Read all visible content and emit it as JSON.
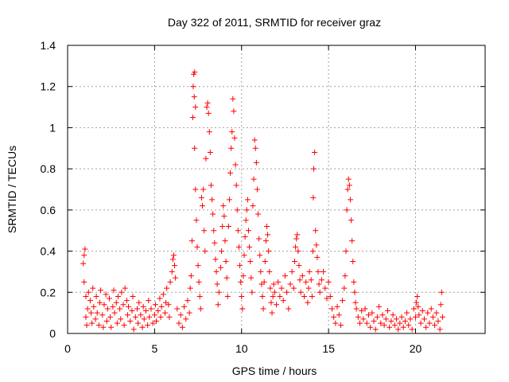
{
  "chart_data": {
    "type": "scatter",
    "title": "Day 322 of 2011, SRMTID for receiver graz",
    "xlabel": "GPS time / hours",
    "ylabel": "SRMTID / TECUs",
    "xlim": [
      0,
      24
    ],
    "ylim": [
      0,
      1.4
    ],
    "xticks": [
      0,
      5,
      10,
      15,
      20
    ],
    "xtick_labels": [
      "0",
      "5",
      "10",
      "15",
      "20"
    ],
    "yticks": [
      0,
      0.2,
      0.4,
      0.6,
      0.8,
      1.0,
      1.2,
      1.4
    ],
    "ytick_labels": [
      "0",
      "0.2",
      "0.4",
      "0.6",
      "0.8",
      "1",
      "1.2",
      "1.4"
    ],
    "grid": true,
    "marker": "plus",
    "color": "#ff0000",
    "series": [
      {
        "name": "SRMTID",
        "points": [
          [
            0.9,
            0.34
          ],
          [
            0.95,
            0.38
          ],
          [
            1.0,
            0.41
          ],
          [
            0.95,
            0.25
          ],
          [
            1.05,
            0.18
          ],
          [
            1.05,
            0.08
          ],
          [
            1.1,
            0.04
          ],
          [
            1.15,
            0.12
          ],
          [
            1.2,
            0.2
          ],
          [
            1.3,
            0.16
          ],
          [
            1.35,
            0.1
          ],
          [
            1.4,
            0.05
          ],
          [
            1.45,
            0.22
          ],
          [
            1.5,
            0.13
          ],
          [
            1.6,
            0.07
          ],
          [
            1.65,
            0.18
          ],
          [
            1.7,
            0.1
          ],
          [
            1.8,
            0.04
          ],
          [
            1.85,
            0.15
          ],
          [
            1.9,
            0.21
          ],
          [
            2.0,
            0.09
          ],
          [
            2.05,
            0.03
          ],
          [
            2.1,
            0.14
          ],
          [
            2.2,
            0.19
          ],
          [
            2.25,
            0.06
          ],
          [
            2.3,
            0.12
          ],
          [
            2.4,
            0.17
          ],
          [
            2.45,
            0.08
          ],
          [
            2.5,
            0.03
          ],
          [
            2.6,
            0.13
          ],
          [
            2.65,
            0.21
          ],
          [
            2.7,
            0.1
          ],
          [
            2.8,
            0.15
          ],
          [
            2.85,
            0.05
          ],
          [
            2.9,
            0.18
          ],
          [
            3.0,
            0.12
          ],
          [
            3.05,
            0.07
          ],
          [
            3.1,
            0.2
          ],
          [
            3.2,
            0.14
          ],
          [
            3.25,
            0.04
          ],
          [
            3.3,
            0.22
          ],
          [
            3.4,
            0.16
          ],
          [
            3.45,
            0.09
          ],
          [
            3.5,
            0.13
          ],
          [
            3.6,
            0.06
          ],
          [
            3.7,
            0.11
          ],
          [
            3.75,
            0.18
          ],
          [
            3.8,
            0.02
          ],
          [
            3.9,
            0.08
          ],
          [
            4.0,
            0.12
          ],
          [
            4.05,
            0.05
          ],
          [
            4.1,
            0.15
          ],
          [
            4.2,
            0.09
          ],
          [
            4.3,
            0.03
          ],
          [
            4.35,
            0.13
          ],
          [
            4.4,
            0.07
          ],
          [
            4.5,
            0.11
          ],
          [
            4.6,
            0.04
          ],
          [
            4.65,
            0.16
          ],
          [
            4.7,
            0.08
          ],
          [
            4.8,
            0.12
          ],
          [
            4.9,
            0.05
          ],
          [
            5.0,
            0.09
          ],
          [
            5.05,
            0.14
          ],
          [
            5.1,
            0.06
          ],
          [
            5.2,
            0.11
          ],
          [
            5.3,
            0.17
          ],
          [
            5.35,
            0.08
          ],
          [
            5.4,
            0.13
          ],
          [
            5.5,
            0.19
          ],
          [
            5.6,
            0.1
          ],
          [
            5.65,
            0.15
          ],
          [
            5.7,
            0.22
          ],
          [
            5.8,
            0.14
          ],
          [
            5.85,
            0.08
          ],
          [
            5.9,
            0.25
          ],
          [
            6.0,
            0.3
          ],
          [
            6.05,
            0.36
          ],
          [
            6.1,
            0.38
          ],
          [
            6.15,
            0.33
          ],
          [
            6.2,
            0.27
          ],
          [
            6.3,
            0.12
          ],
          [
            6.4,
            0.05
          ],
          [
            6.5,
            0.09
          ],
          [
            6.6,
            0.03
          ],
          [
            6.7,
            0.13
          ],
          [
            6.8,
            0.07
          ],
          [
            6.9,
            0.16
          ],
          [
            7.0,
            0.1
          ],
          [
            7.05,
            0.22
          ],
          [
            7.1,
            0.28
          ],
          [
            7.15,
            0.45
          ],
          [
            7.2,
            1.05
          ],
          [
            7.22,
            1.2
          ],
          [
            7.25,
            1.26
          ],
          [
            7.3,
            1.27
          ],
          [
            7.28,
            1.15
          ],
          [
            7.35,
            1.1
          ],
          [
            7.3,
            0.9
          ],
          [
            7.35,
            0.7
          ],
          [
            7.4,
            0.55
          ],
          [
            7.45,
            0.42
          ],
          [
            7.5,
            0.33
          ],
          [
            7.55,
            0.25
          ],
          [
            7.6,
            0.18
          ],
          [
            7.65,
            0.12
          ],
          [
            7.7,
            0.66
          ],
          [
            7.75,
            0.62
          ],
          [
            7.8,
            0.7
          ],
          [
            7.85,
            0.5
          ],
          [
            7.9,
            0.4
          ],
          [
            7.95,
            0.85
          ],
          [
            8.0,
            1.1
          ],
          [
            8.05,
            1.12
          ],
          [
            8.1,
            1.07
          ],
          [
            8.15,
            0.98
          ],
          [
            8.2,
            0.88
          ],
          [
            8.25,
            0.72
          ],
          [
            8.3,
            0.65
          ],
          [
            8.35,
            0.58
          ],
          [
            8.4,
            0.5
          ],
          [
            8.45,
            0.44
          ],
          [
            8.5,
            0.36
          ],
          [
            8.55,
            0.3
          ],
          [
            8.6,
            0.24
          ],
          [
            8.65,
            0.14
          ],
          [
            8.7,
            0.2
          ],
          [
            8.8,
            0.32
          ],
          [
            8.85,
            0.4
          ],
          [
            8.9,
            0.52
          ],
          [
            8.95,
            0.62
          ],
          [
            9.0,
            0.57
          ],
          [
            9.05,
            0.45
          ],
          [
            9.1,
            0.35
          ],
          [
            9.15,
            0.27
          ],
          [
            9.2,
            0.18
          ],
          [
            9.25,
            0.52
          ],
          [
            9.3,
            0.65
          ],
          [
            9.35,
            0.78
          ],
          [
            9.4,
            0.9
          ],
          [
            9.45,
            0.98
          ],
          [
            9.5,
            1.14
          ],
          [
            9.55,
            1.08
          ],
          [
            9.6,
            0.95
          ],
          [
            9.65,
            0.82
          ],
          [
            9.7,
            0.72
          ],
          [
            9.75,
            0.6
          ],
          [
            9.8,
            0.5
          ],
          [
            9.85,
            0.42
          ],
          [
            9.9,
            0.33
          ],
          [
            9.95,
            0.25
          ],
          [
            10.0,
            0.18
          ],
          [
            10.05,
            0.12
          ],
          [
            10.1,
            0.28
          ],
          [
            10.15,
            0.38
          ],
          [
            10.2,
            0.47
          ],
          [
            10.25,
            0.55
          ],
          [
            10.3,
            0.6
          ],
          [
            10.35,
            0.65
          ],
          [
            10.4,
            0.5
          ],
          [
            10.45,
            0.42
          ],
          [
            10.5,
            0.35
          ],
          [
            10.55,
            0.27
          ],
          [
            10.6,
            0.2
          ],
          [
            10.65,
            0.62
          ],
          [
            10.7,
            0.75
          ],
          [
            10.75,
            0.94
          ],
          [
            10.8,
            0.9
          ],
          [
            10.85,
            0.83
          ],
          [
            10.9,
            0.7
          ],
          [
            10.95,
            0.58
          ],
          [
            11.0,
            0.46
          ],
          [
            11.05,
            0.38
          ],
          [
            11.1,
            0.3
          ],
          [
            11.15,
            0.24
          ],
          [
            11.2,
            0.18
          ],
          [
            11.25,
            0.12
          ],
          [
            11.3,
            0.25
          ],
          [
            11.35,
            0.35
          ],
          [
            11.4,
            0.45
          ],
          [
            11.45,
            0.52
          ],
          [
            11.5,
            0.48
          ],
          [
            11.55,
            0.4
          ],
          [
            11.6,
            0.3
          ],
          [
            11.65,
            0.22
          ],
          [
            11.7,
            0.15
          ],
          [
            11.75,
            0.1
          ],
          [
            11.8,
            0.18
          ],
          [
            11.85,
            0.24
          ],
          [
            11.9,
            0.2
          ],
          [
            12.0,
            0.14
          ],
          [
            12.1,
            0.25
          ],
          [
            12.2,
            0.18
          ],
          [
            12.3,
            0.22
          ],
          [
            12.4,
            0.16
          ],
          [
            12.5,
            0.28
          ],
          [
            12.6,
            0.2
          ],
          [
            12.7,
            0.12
          ],
          [
            12.8,
            0.24
          ],
          [
            12.9,
            0.3
          ],
          [
            13.0,
            0.22
          ],
          [
            13.05,
            0.35
          ],
          [
            13.1,
            0.42
          ],
          [
            13.15,
            0.46
          ],
          [
            13.2,
            0.48
          ],
          [
            13.25,
            0.4
          ],
          [
            13.3,
            0.33
          ],
          [
            13.35,
            0.26
          ],
          [
            13.4,
            0.2
          ],
          [
            13.5,
            0.28
          ],
          [
            13.6,
            0.18
          ],
          [
            13.7,
            0.25
          ],
          [
            13.8,
            0.15
          ],
          [
            13.85,
            0.22
          ],
          [
            13.9,
            0.3
          ],
          [
            14.0,
            0.26
          ],
          [
            14.05,
            0.18
          ],
          [
            14.1,
            0.4
          ],
          [
            14.12,
            0.66
          ],
          [
            14.15,
            0.8
          ],
          [
            14.2,
            0.88
          ],
          [
            14.25,
            0.5
          ],
          [
            14.3,
            0.43
          ],
          [
            14.35,
            0.37
          ],
          [
            14.4,
            0.3
          ],
          [
            14.45,
            0.24
          ],
          [
            14.5,
            0.2
          ],
          [
            14.6,
            0.26
          ],
          [
            14.7,
            0.3
          ],
          [
            14.8,
            0.22
          ],
          [
            14.9,
            0.17
          ],
          [
            15.0,
            0.25
          ],
          [
            15.1,
            0.18
          ],
          [
            15.2,
            0.12
          ],
          [
            15.3,
            0.08
          ],
          [
            15.4,
            0.05
          ],
          [
            15.5,
            0.13
          ],
          [
            15.6,
            0.09
          ],
          [
            15.7,
            0.04
          ],
          [
            15.8,
            0.16
          ],
          [
            15.9,
            0.22
          ],
          [
            15.95,
            0.28
          ],
          [
            16.0,
            0.4
          ],
          [
            16.05,
            0.6
          ],
          [
            16.1,
            0.7
          ],
          [
            16.15,
            0.75
          ],
          [
            16.2,
            0.72
          ],
          [
            16.25,
            0.65
          ],
          [
            16.3,
            0.55
          ],
          [
            16.35,
            0.45
          ],
          [
            16.4,
            0.35
          ],
          [
            16.45,
            0.25
          ],
          [
            16.5,
            0.2
          ],
          [
            16.55,
            0.15
          ],
          [
            16.6,
            0.12
          ],
          [
            16.7,
            0.08
          ],
          [
            16.8,
            0.05
          ],
          [
            16.9,
            0.11
          ],
          [
            17.0,
            0.07
          ],
          [
            17.1,
            0.12
          ],
          [
            17.2,
            0.05
          ],
          [
            17.3,
            0.09
          ],
          [
            17.4,
            0.03
          ],
          [
            17.5,
            0.1
          ],
          [
            17.6,
            0.06
          ],
          [
            17.7,
            0.02
          ],
          [
            17.8,
            0.08
          ],
          [
            17.9,
            0.13
          ],
          [
            18.0,
            0.05
          ],
          [
            18.1,
            0.09
          ],
          [
            18.2,
            0.04
          ],
          [
            18.3,
            0.07
          ],
          [
            18.4,
            0.11
          ],
          [
            18.5,
            0.03
          ],
          [
            18.6,
            0.06
          ],
          [
            18.7,
            0.09
          ],
          [
            18.8,
            0.04
          ],
          [
            18.9,
            0.07
          ],
          [
            19.0,
            0.02
          ],
          [
            19.1,
            0.05
          ],
          [
            19.2,
            0.08
          ],
          [
            19.3,
            0.03
          ],
          [
            19.4,
            0.06
          ],
          [
            19.5,
            0.1
          ],
          [
            19.6,
            0.04
          ],
          [
            19.7,
            0.07
          ],
          [
            19.8,
            0.02
          ],
          [
            19.9,
            0.12
          ],
          [
            20.0,
            0.08
          ],
          [
            20.05,
            0.15
          ],
          [
            20.1,
            0.18
          ],
          [
            20.15,
            0.13
          ],
          [
            20.2,
            0.09
          ],
          [
            20.3,
            0.05
          ],
          [
            20.4,
            0.11
          ],
          [
            20.5,
            0.07
          ],
          [
            20.6,
            0.03
          ],
          [
            20.7,
            0.1
          ],
          [
            20.8,
            0.05
          ],
          [
            20.9,
            0.12
          ],
          [
            21.0,
            0.08
          ],
          [
            21.1,
            0.04
          ],
          [
            21.2,
            0.1
          ],
          [
            21.3,
            0.06
          ],
          [
            21.4,
            0.02
          ],
          [
            21.45,
            0.14
          ],
          [
            21.5,
            0.2
          ],
          [
            21.55,
            0.08
          ]
        ]
      }
    ]
  }
}
